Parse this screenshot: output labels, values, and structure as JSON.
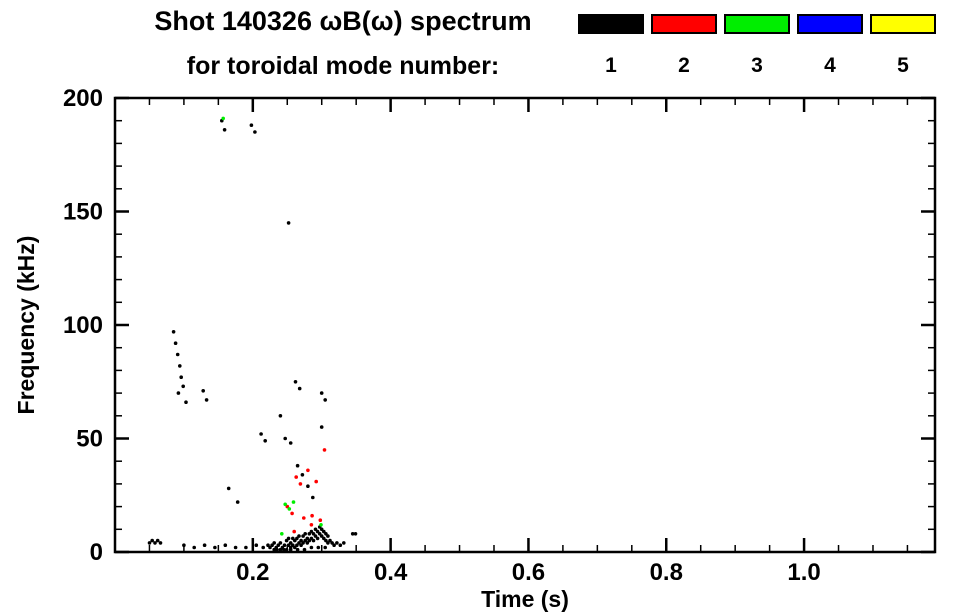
{
  "title": {
    "line1": "Shot 140326 ωB(ω) spectrum",
    "line2": "for toroidal mode number:"
  },
  "legend": {
    "modes": [
      {
        "label": "1",
        "color": "#000000"
      },
      {
        "label": "2",
        "color": "#ff0000"
      },
      {
        "label": "3",
        "color": "#00ee00"
      },
      {
        "label": "4",
        "color": "#0000ff"
      },
      {
        "label": "5",
        "color": "#ffff00"
      }
    ]
  },
  "chart_data": {
    "type": "scatter",
    "title": "Shot 140326 ωB(ω) spectrum for toroidal mode number",
    "xlabel": "Time (s)",
    "ylabel": "Frequency (kHz)",
    "xlim": [
      0,
      1.19
    ],
    "ylim": [
      0,
      200
    ],
    "xticks": [
      {
        "v": 0.2,
        "label": "0.2"
      },
      {
        "v": 0.4,
        "label": "0.4"
      },
      {
        "v": 0.6,
        "label": "0.6"
      },
      {
        "v": 0.8,
        "label": "0.8"
      },
      {
        "v": 1.0,
        "label": "1.0"
      }
    ],
    "yticks": [
      {
        "v": 0,
        "label": "0"
      },
      {
        "v": 50,
        "label": "50"
      },
      {
        "v": 100,
        "label": "100"
      },
      {
        "v": 150,
        "label": "150"
      },
      {
        "v": 200,
        "label": "200"
      }
    ],
    "x_minor_step": 0.05,
    "y_minor_step": 10,
    "grid": false,
    "legend_position": "top",
    "series": [
      {
        "name": "n=1",
        "color": "#000000",
        "points": [
          [
            0.05,
            4
          ],
          [
            0.054,
            5
          ],
          [
            0.058,
            4
          ],
          [
            0.062,
            5
          ],
          [
            0.066,
            4
          ],
          [
            0.1,
            3
          ],
          [
            0.115,
            2
          ],
          [
            0.13,
            3
          ],
          [
            0.145,
            2
          ],
          [
            0.16,
            3
          ],
          [
            0.175,
            2
          ],
          [
            0.19,
            2
          ],
          [
            0.205,
            3
          ],
          [
            0.215,
            2
          ],
          [
            0.222,
            3
          ],
          [
            0.225,
            2
          ],
          [
            0.228,
            3
          ],
          [
            0.231,
            1
          ],
          [
            0.231,
            4
          ],
          [
            0.234,
            2
          ],
          [
            0.237,
            3
          ],
          [
            0.24,
            1
          ],
          [
            0.24,
            4
          ],
          [
            0.243,
            2
          ],
          [
            0.246,
            3
          ],
          [
            0.249,
            1
          ],
          [
            0.249,
            5
          ],
          [
            0.252,
            3
          ],
          [
            0.252,
            6
          ],
          [
            0.255,
            2
          ],
          [
            0.255,
            4
          ],
          [
            0.258,
            3
          ],
          [
            0.258,
            6
          ],
          [
            0.261,
            2
          ],
          [
            0.261,
            5
          ],
          [
            0.264,
            3
          ],
          [
            0.264,
            6
          ],
          [
            0.267,
            4
          ],
          [
            0.267,
            7
          ],
          [
            0.27,
            3
          ],
          [
            0.27,
            5
          ],
          [
            0.273,
            4
          ],
          [
            0.273,
            7
          ],
          [
            0.276,
            5
          ],
          [
            0.276,
            8
          ],
          [
            0.279,
            4
          ],
          [
            0.279,
            6
          ],
          [
            0.282,
            5
          ],
          [
            0.282,
            8
          ],
          [
            0.285,
            6
          ],
          [
            0.285,
            9
          ],
          [
            0.288,
            5
          ],
          [
            0.288,
            8
          ],
          [
            0.291,
            7
          ],
          [
            0.291,
            10
          ],
          [
            0.294,
            6
          ],
          [
            0.294,
            9
          ],
          [
            0.297,
            8
          ],
          [
            0.297,
            11
          ],
          [
            0.3,
            7
          ],
          [
            0.3,
            10
          ],
          [
            0.303,
            6
          ],
          [
            0.303,
            9
          ],
          [
            0.306,
            5
          ],
          [
            0.306,
            8
          ],
          [
            0.309,
            4
          ],
          [
            0.309,
            7
          ],
          [
            0.312,
            5
          ],
          [
            0.315,
            4
          ],
          [
            0.318,
            3
          ],
          [
            0.322,
            4
          ],
          [
            0.327,
            3
          ],
          [
            0.332,
            4
          ],
          [
            0.345,
            8
          ],
          [
            0.349,
            8
          ],
          [
            0.235,
            1
          ],
          [
            0.245,
            1
          ],
          [
            0.255,
            1
          ],
          [
            0.265,
            1
          ],
          [
            0.275,
            1
          ],
          [
            0.285,
            2
          ],
          [
            0.295,
            2
          ],
          [
            0.305,
            2
          ],
          [
            0.085,
            97
          ],
          [
            0.088,
            92
          ],
          [
            0.091,
            87
          ],
          [
            0.094,
            82
          ],
          [
            0.096,
            77
          ],
          [
            0.099,
            73
          ],
          [
            0.092,
            70
          ],
          [
            0.103,
            66
          ],
          [
            0.128,
            71
          ],
          [
            0.133,
            67
          ],
          [
            0.155,
            190
          ],
          [
            0.159,
            186
          ],
          [
            0.198,
            188
          ],
          [
            0.203,
            185
          ],
          [
            0.252,
            145
          ],
          [
            0.212,
            52
          ],
          [
            0.218,
            49
          ],
          [
            0.247,
            50
          ],
          [
            0.255,
            48
          ],
          [
            0.262,
            75
          ],
          [
            0.268,
            72
          ],
          [
            0.3,
            70
          ],
          [
            0.305,
            67
          ],
          [
            0.265,
            38
          ],
          [
            0.272,
            34
          ],
          [
            0.28,
            29
          ],
          [
            0.287,
            24
          ],
          [
            0.165,
            28
          ],
          [
            0.178,
            22
          ],
          [
            0.24,
            60
          ],
          [
            0.3,
            55
          ]
        ]
      },
      {
        "name": "n=2",
        "color": "#ff0000",
        "points": [
          [
            0.25,
            20
          ],
          [
            0.257,
            17
          ],
          [
            0.263,
            33
          ],
          [
            0.269,
            30
          ],
          [
            0.274,
            15
          ],
          [
            0.28,
            36
          ],
          [
            0.286,
            16
          ],
          [
            0.292,
            31
          ],
          [
            0.298,
            14
          ],
          [
            0.304,
            45
          ],
          [
            0.26,
            9
          ],
          [
            0.285,
            12
          ]
        ]
      },
      {
        "name": "n=3",
        "color": "#00ee00",
        "points": [
          [
            0.157,
            191
          ],
          [
            0.247,
            21
          ],
          [
            0.253,
            19
          ],
          [
            0.259,
            22
          ],
          [
            0.299,
            12
          ],
          [
            0.242,
            8
          ]
        ]
      },
      {
        "name": "n=4",
        "color": "#0000ff",
        "points": []
      },
      {
        "name": "n=5",
        "color": "#ffff00",
        "points": []
      }
    ]
  }
}
